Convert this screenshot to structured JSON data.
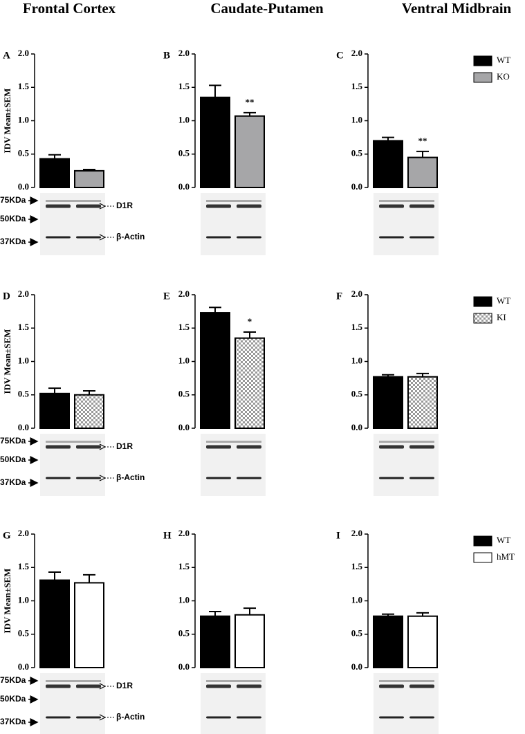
{
  "column_titles": [
    "Frontal Cortex",
    "Caudate-Putamen",
    "Ventral Midbrain"
  ],
  "chart_data": [
    {
      "type": "bar",
      "panel": "A",
      "ylabel": "IDV Mean±SEM",
      "ylim": [
        0,
        2
      ],
      "yticks": [
        {
          "value": 0,
          "label": "0.0"
        },
        {
          "value": 0.5,
          "label": "0.5"
        },
        {
          "value": 1,
          "label": "1.0"
        },
        {
          "value": 1.5,
          "label": "1.5"
        },
        {
          "value": 2,
          "label": "2.0"
        }
      ],
      "series": [
        {
          "color": "#000000",
          "values": [
            0.43
          ],
          "errors": [
            0.06
          ]
        },
        {
          "color": "#a6a6a8",
          "values": [
            0.25
          ],
          "errors": [
            0.02
          ]
        }
      ],
      "blot_markers": [
        "75KDa",
        "50KDa",
        "37KDa"
      ],
      "blot_bands": [
        "D1R",
        "β-Actin"
      ]
    },
    {
      "type": "bar",
      "panel": "B",
      "ylim": [
        0,
        2
      ],
      "yticks": [
        {
          "value": 0,
          "label": "0.0"
        },
        {
          "value": 0.5,
          "label": "0.5"
        },
        {
          "value": 1,
          "label": "1.0"
        },
        {
          "value": 1.5,
          "label": "1.5"
        },
        {
          "value": 2,
          "label": "2.0"
        }
      ],
      "series": [
        {
          "color": "#000000",
          "values": [
            1.35
          ],
          "errors": [
            0.18
          ]
        },
        {
          "color": "#a6a6a8",
          "values": [
            1.07
          ],
          "errors": [
            0.05
          ]
        }
      ],
      "annotation": "**"
    },
    {
      "type": "bar",
      "panel": "C",
      "ylim": [
        0,
        2
      ],
      "yticks": [
        {
          "value": 0,
          "label": "0.0"
        },
        {
          "value": 0.5,
          "label": "0.5"
        },
        {
          "value": 1,
          "label": "1.0"
        },
        {
          "value": 1.5,
          "label": "1.5"
        },
        {
          "value": 2,
          "label": "2.0"
        }
      ],
      "series": [
        {
          "name": "WT",
          "color": "#000000",
          "values": [
            0.7
          ],
          "errors": [
            0.05
          ]
        },
        {
          "name": "KO",
          "color": "#a6a6a8",
          "values": [
            0.45
          ],
          "errors": [
            0.09
          ]
        }
      ],
      "annotation": "**"
    },
    {
      "type": "bar",
      "panel": "D",
      "ylabel": "IDV Mean±SEM",
      "ylim": [
        0,
        2
      ],
      "yticks": [
        {
          "value": 0,
          "label": "0.0"
        },
        {
          "value": 0.5,
          "label": "0.5"
        },
        {
          "value": 1,
          "label": "1.0"
        },
        {
          "value": 1.5,
          "label": "1.5"
        },
        {
          "value": 2,
          "label": "2.0"
        }
      ],
      "series": [
        {
          "color": "#000000",
          "values": [
            0.52
          ],
          "errors": [
            0.08
          ]
        },
        {
          "color": "#ffffff",
          "pattern": "checker",
          "values": [
            0.5
          ],
          "errors": [
            0.06
          ]
        }
      ],
      "blot_markers": [
        "75KDa",
        "50KDa",
        "37KDa"
      ],
      "blot_bands": [
        "D1R",
        "β-Actin"
      ]
    },
    {
      "type": "bar",
      "panel": "E",
      "ylim": [
        0,
        2
      ],
      "yticks": [
        {
          "value": 0,
          "label": "0.0"
        },
        {
          "value": 0.5,
          "label": "0.5"
        },
        {
          "value": 1,
          "label": "1.0"
        },
        {
          "value": 1.5,
          "label": "1.5"
        },
        {
          "value": 2,
          "label": "2.0"
        }
      ],
      "series": [
        {
          "color": "#000000",
          "values": [
            1.73
          ],
          "errors": [
            0.08
          ]
        },
        {
          "color": "#ffffff",
          "pattern": "checker",
          "values": [
            1.35
          ],
          "errors": [
            0.09
          ]
        }
      ],
      "annotation": "*"
    },
    {
      "type": "bar",
      "panel": "F",
      "ylim": [
        0,
        2
      ],
      "yticks": [
        {
          "value": 0,
          "label": "0.0"
        },
        {
          "value": 0.5,
          "label": "0.5"
        },
        {
          "value": 1,
          "label": "1.0"
        },
        {
          "value": 1.5,
          "label": "1.5"
        },
        {
          "value": 2,
          "label": "2.0"
        }
      ],
      "series": [
        {
          "name": "WT",
          "color": "#000000",
          "values": [
            0.77
          ],
          "errors": [
            0.03
          ]
        },
        {
          "name": "KI",
          "color": "#ffffff",
          "pattern": "checker",
          "values": [
            0.77
          ],
          "errors": [
            0.05
          ]
        }
      ]
    },
    {
      "type": "bar",
      "panel": "G",
      "ylabel": "IDV Mean±SEM",
      "ylim": [
        0,
        2
      ],
      "yticks": [
        {
          "value": 0,
          "label": "0.0"
        },
        {
          "value": 0.5,
          "label": "0.5"
        },
        {
          "value": 1,
          "label": "1.0"
        },
        {
          "value": 1.5,
          "label": "1.5"
        },
        {
          "value": 2,
          "label": "2.0"
        }
      ],
      "series": [
        {
          "color": "#000000",
          "values": [
            1.31
          ],
          "errors": [
            0.12
          ]
        },
        {
          "color": "#ffffff",
          "values": [
            1.27
          ],
          "errors": [
            0.12
          ]
        }
      ],
      "blot_markers": [
        "75KDa",
        "50KDa",
        "37KDa"
      ],
      "blot_bands": [
        "D1R",
        "β-Actin"
      ]
    },
    {
      "type": "bar",
      "panel": "H",
      "ylim": [
        0,
        2
      ],
      "yticks": [
        {
          "value": 0,
          "label": "0.0"
        },
        {
          "value": 0.5,
          "label": "0.5"
        },
        {
          "value": 1,
          "label": "1.0"
        },
        {
          "value": 1.5,
          "label": "1.5"
        },
        {
          "value": 2,
          "label": "2.0"
        }
      ],
      "series": [
        {
          "color": "#000000",
          "values": [
            0.77
          ],
          "errors": [
            0.07
          ]
        },
        {
          "color": "#ffffff",
          "values": [
            0.79
          ],
          "errors": [
            0.1
          ]
        }
      ]
    },
    {
      "type": "bar",
      "panel": "I",
      "ylim": [
        0,
        2
      ],
      "yticks": [
        {
          "value": 0,
          "label": "0.0"
        },
        {
          "value": 0.5,
          "label": "0.5"
        },
        {
          "value": 1,
          "label": "1.0"
        },
        {
          "value": 1.5,
          "label": "1.5"
        },
        {
          "value": 2,
          "label": "2.0"
        }
      ],
      "series": [
        {
          "name": "WT",
          "color": "#000000",
          "values": [
            0.77
          ],
          "errors": [
            0.03
          ]
        },
        {
          "name": "hMT",
          "color": "#ffffff",
          "values": [
            0.77
          ],
          "errors": [
            0.05
          ]
        }
      ]
    }
  ]
}
